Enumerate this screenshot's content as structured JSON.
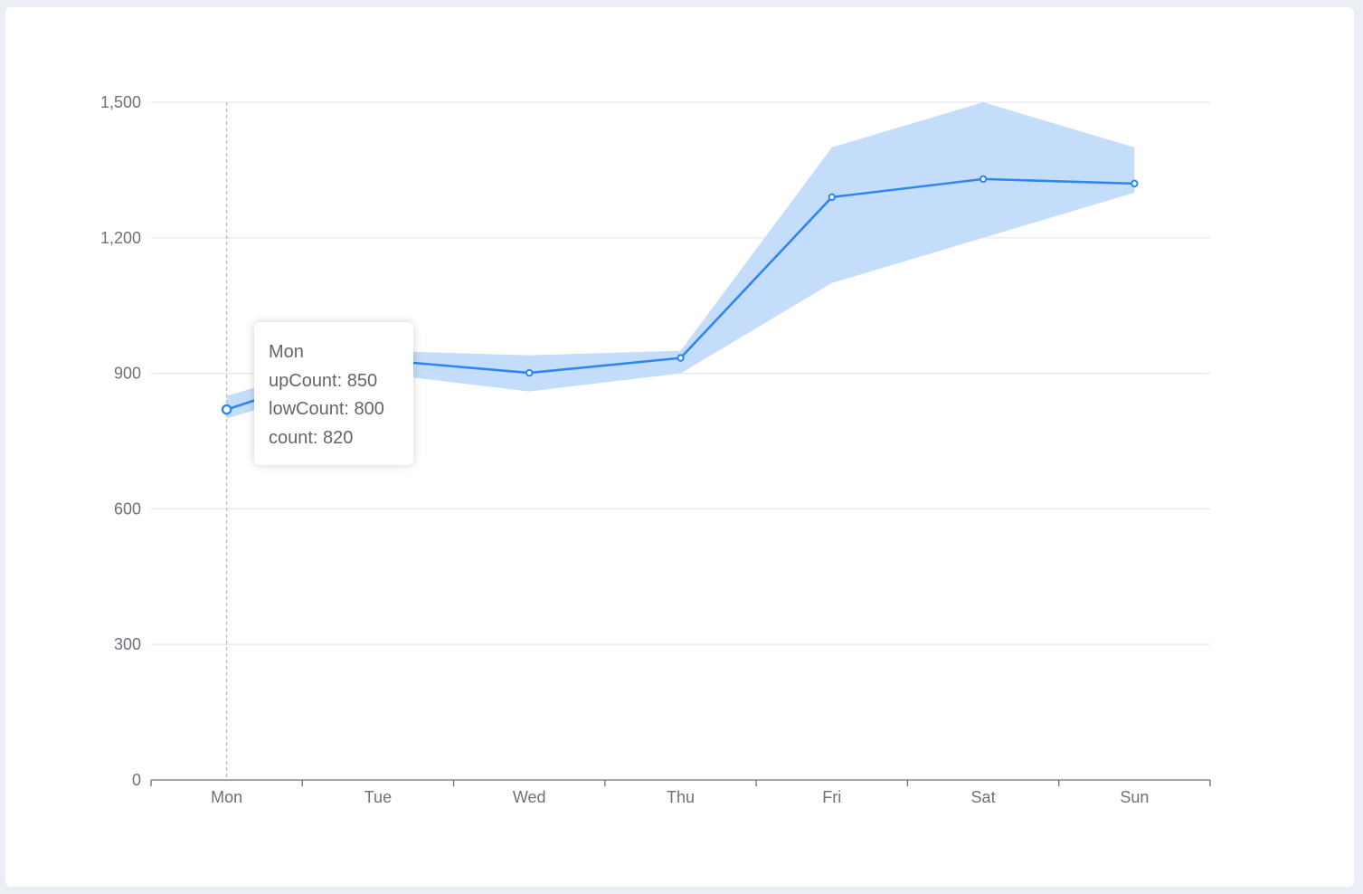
{
  "colors": {
    "page_background": "#eceef5",
    "card_background": "#ffffff",
    "line": "#2e86f0",
    "band": "#c3ddfb",
    "grid": "#e3e6ef",
    "axis": "#6e7079",
    "pointer": "#bfbfbf"
  },
  "chart_data": {
    "type": "line",
    "categories": [
      "Mon",
      "Tue",
      "Wed",
      "Thu",
      "Fri",
      "Sat",
      "Sun"
    ],
    "series": [
      {
        "name": "count",
        "values": [
          820,
          930,
          901,
          934,
          1290,
          1330,
          1320
        ]
      },
      {
        "name": "upCount",
        "values": [
          850,
          950,
          940,
          950,
          1400,
          1500,
          1400
        ]
      },
      {
        "name": "lowCount",
        "values": [
          800,
          900,
          860,
          900,
          1100,
          1200,
          1300
        ]
      }
    ],
    "band": {
      "upper": "upCount",
      "lower": "lowCount"
    },
    "ylim": [
      0,
      1500
    ],
    "yticks": [
      0,
      300,
      600,
      900,
      1200,
      1500
    ],
    "ytick_labels": [
      "0",
      "300",
      "600",
      "900",
      "1,200",
      "1,500"
    ],
    "grid": true,
    "active_index": 0
  },
  "tooltip": {
    "title": "Mon",
    "line1": "upCount: 850",
    "line2": "lowCount: 800",
    "line3": "count: 820"
  }
}
